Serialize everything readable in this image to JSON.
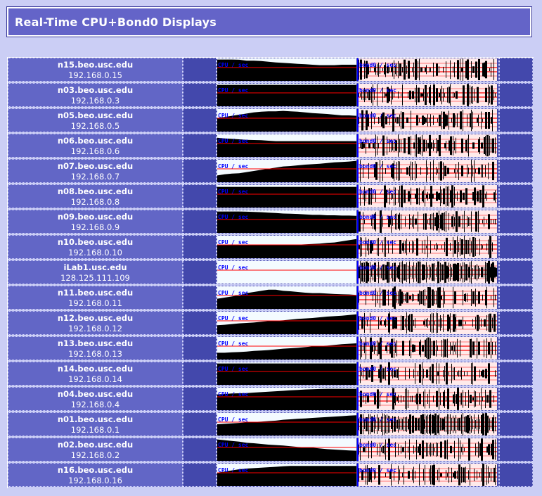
{
  "title": "Real-Time CPU+Bond0 Displays",
  "cpu_label": "CPU / sec",
  "bond_label": "bond0 / sec",
  "colors": {
    "page_bg": "#cbcef5",
    "title_bg": "#6464c8",
    "name_cell_bg": "#6266c6",
    "graph_cell_bg": "#4348ac",
    "graph_fill": "#000000",
    "graph_bg_light": "#f4fbff",
    "graph_bg_pink": "#ffeaea",
    "red_line": "#ff0000",
    "blue_marker": "#0000ff"
  },
  "nodes": [
    {
      "host": "n15.beo.usc.edu",
      "ip": "192.168.0.15",
      "cpu": [
        0.95,
        0.95,
        0.95,
        0.94,
        0.9,
        0.9,
        0.88,
        0.85,
        0.82,
        0.8,
        0.78,
        0.76,
        0.74,
        0.72,
        0.7,
        0.7,
        0.7,
        0.72,
        0.72,
        0.72
      ]
    },
    {
      "host": "n03.beo.usc.edu",
      "ip": "192.168.0.3",
      "cpu": [
        0.95,
        0.95,
        0.95,
        0.95,
        0.95,
        0.95,
        0.95,
        0.95,
        0.95,
        0.95,
        0.95,
        0.95,
        0.95,
        0.95,
        0.95,
        0.95,
        0.95,
        0.95,
        0.95,
        0.95
      ]
    },
    {
      "host": "n05.beo.usc.edu",
      "ip": "192.168.0.5",
      "cpu": [
        0.6,
        0.65,
        0.7,
        0.75,
        0.8,
        0.85,
        0.88,
        0.9,
        0.9,
        0.92,
        0.9,
        0.88,
        0.85,
        0.82,
        0.8,
        0.78,
        0.75,
        0.72,
        0.72,
        0.7
      ]
    },
    {
      "host": "n06.beo.usc.edu",
      "ip": "192.168.0.6",
      "cpu": [
        0.85,
        0.82,
        0.8,
        0.78,
        0.76,
        0.75,
        0.74,
        0.72,
        0.7,
        0.7,
        0.7,
        0.7,
        0.7,
        0.7,
        0.7,
        0.7,
        0.7,
        0.7,
        0.7,
        0.7
      ]
    },
    {
      "host": "n07.beo.usc.edu",
      "ip": "192.168.0.7",
      "cpu": [
        0.3,
        0.35,
        0.38,
        0.4,
        0.45,
        0.5,
        0.55,
        0.6,
        0.65,
        0.7,
        0.72,
        0.75,
        0.78,
        0.8,
        0.82,
        0.85,
        0.88,
        0.9,
        0.92,
        0.95
      ]
    },
    {
      "host": "n08.beo.usc.edu",
      "ip": "192.168.0.8",
      "cpu": [
        0.92,
        0.92,
        0.92,
        0.92,
        0.92,
        0.92,
        0.92,
        0.92,
        0.92,
        0.92,
        0.92,
        0.92,
        0.92,
        0.92,
        0.92,
        0.92,
        0.92,
        0.92,
        0.92,
        0.92
      ]
    },
    {
      "host": "n09.beo.usc.edu",
      "ip": "192.168.0.9",
      "cpu": [
        0.95,
        0.95,
        0.95,
        0.95,
        0.94,
        0.93,
        0.92,
        0.9,
        0.88,
        0.86,
        0.85,
        0.84,
        0.82,
        0.8,
        0.8,
        0.78,
        0.78,
        0.77,
        0.77,
        0.76
      ]
    },
    {
      "host": "n10.beo.usc.edu",
      "ip": "192.168.0.10",
      "cpu": [
        0.6,
        0.6,
        0.6,
        0.6,
        0.6,
        0.6,
        0.6,
        0.6,
        0.6,
        0.6,
        0.6,
        0.6,
        0.62,
        0.63,
        0.65,
        0.68,
        0.7,
        0.75,
        0.8,
        0.85
      ]
    },
    {
      "host": "iLab1.usc.edu",
      "ip": "128.125.111.109",
      "cpu": [
        0,
        0,
        0,
        0,
        0,
        0,
        0,
        0,
        0,
        0,
        0,
        0,
        0,
        0,
        0,
        0,
        0,
        0,
        0,
        0
      ]
    },
    {
      "host": "n11.beo.usc.edu",
      "ip": "192.168.0.11",
      "cpu": [
        0.45,
        0.5,
        0.55,
        0.6,
        0.7,
        0.75,
        0.8,
        0.85,
        0.85,
        0.8,
        0.78,
        0.75,
        0.72,
        0.7,
        0.7,
        0.68,
        0.66,
        0.65,
        0.64,
        0.62
      ]
    },
    {
      "host": "n12.beo.usc.edu",
      "ip": "192.168.0.12",
      "cpu": [
        0.4,
        0.42,
        0.45,
        0.48,
        0.5,
        0.52,
        0.55,
        0.58,
        0.6,
        0.62,
        0.65,
        0.68,
        0.7,
        0.72,
        0.75,
        0.78,
        0.8,
        0.82,
        0.85,
        0.88
      ]
    },
    {
      "host": "n13.beo.usc.edu",
      "ip": "192.168.0.13",
      "cpu": [
        0.3,
        0.3,
        0.32,
        0.33,
        0.35,
        0.38,
        0.4,
        0.42,
        0.45,
        0.48,
        0.5,
        0.52,
        0.55,
        0.58,
        0.6,
        0.62,
        0.65,
        0.68,
        0.7,
        0.72
      ]
    },
    {
      "host": "n14.beo.usc.edu",
      "ip": "192.168.0.14",
      "cpu": [
        0.95,
        0.95,
        0.95,
        0.95,
        0.95,
        0.95,
        0.95,
        0.95,
        0.95,
        0.95,
        0.95,
        0.95,
        0.95,
        0.95,
        0.95,
        0.95,
        0.95,
        0.95,
        0.95,
        0.95
      ]
    },
    {
      "host": "n04.beo.usc.edu",
      "ip": "192.168.0.4",
      "cpu": [
        0.7,
        0.72,
        0.74,
        0.75,
        0.76,
        0.78,
        0.8,
        0.82,
        0.84,
        0.86,
        0.88,
        0.9,
        0.92,
        0.93,
        0.94,
        0.95,
        0.95,
        0.95,
        0.95,
        0.95
      ]
    },
    {
      "host": "n01.beo.usc.edu",
      "ip": "192.168.0.1",
      "cpu": [
        0.5,
        0.52,
        0.54,
        0.56,
        0.58,
        0.6,
        0.62,
        0.64,
        0.66,
        0.7,
        0.72,
        0.74,
        0.76,
        0.78,
        0.8,
        0.82,
        0.84,
        0.86,
        0.88,
        0.9
      ]
    },
    {
      "host": "n02.beo.usc.edu",
      "ip": "192.168.0.2",
      "cpu": [
        0.95,
        0.92,
        0.88,
        0.85,
        0.8,
        0.78,
        0.75,
        0.72,
        0.7,
        0.68,
        0.65,
        0.62,
        0.6,
        0.58,
        0.55,
        0.52,
        0.5,
        0.48,
        0.46,
        0.45
      ]
    },
    {
      "host": "n16.beo.usc.edu",
      "ip": "192.168.0.16",
      "cpu": [
        0.6,
        0.65,
        0.7,
        0.75,
        0.78,
        0.8,
        0.82,
        0.84,
        0.86,
        0.88,
        0.9,
        0.9,
        0.9,
        0.9,
        0.9,
        0.9,
        0.9,
        0.9,
        0.9,
        0.9
      ]
    }
  ]
}
